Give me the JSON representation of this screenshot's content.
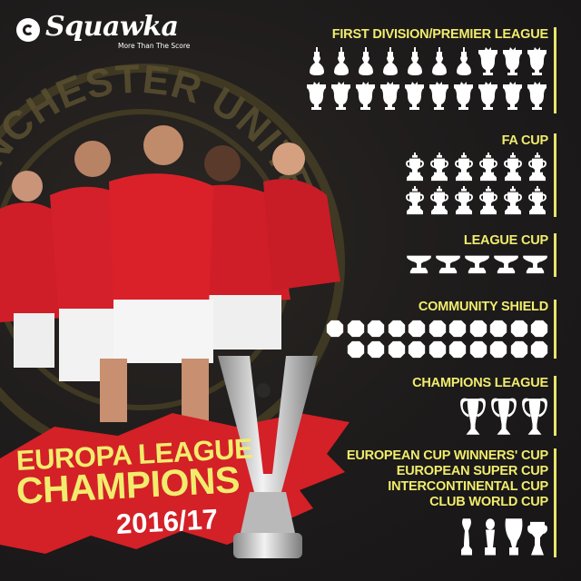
{
  "brand": {
    "name": "Squawka",
    "tagline": "More Than The Score",
    "crest_text": "MANCHESTER UNITED"
  },
  "colors": {
    "accent_yellow": "#f1ec6d",
    "red": "#d42027",
    "background": "#1d1b1b",
    "trophy": "#ffffff"
  },
  "headline": {
    "line1": "EUROPA LEAGUE",
    "line2": "CHAMPIONS",
    "season": "2016/17"
  },
  "sections": [
    {
      "title_lines": [
        "FIRST DIVISION/PREMIER LEAGUE"
      ],
      "groups": [
        {
          "icon": "first-division-trophy-icon",
          "count": 7
        },
        {
          "icon": "premier-league-trophy-icon",
          "count": 13
        }
      ]
    },
    {
      "title_lines": [
        "FA CUP"
      ],
      "groups": [
        {
          "icon": "fa-cup-trophy-icon",
          "count": 12
        }
      ]
    },
    {
      "title_lines": [
        "LEAGUE CUP"
      ],
      "groups": [
        {
          "icon": "league-cup-trophy-icon",
          "count": 5
        }
      ]
    },
    {
      "title_lines": [
        "COMMUNITY SHIELD"
      ],
      "groups": [
        {
          "icon": "community-shield-icon",
          "count": 21
        }
      ]
    },
    {
      "title_lines": [
        "CHAMPIONS LEAGUE"
      ],
      "groups": [
        {
          "icon": "champions-league-trophy-icon",
          "count": 3
        }
      ]
    },
    {
      "title_lines": [
        "EUROPEAN CUP WINNERS' CUP",
        "EUROPEAN SUPER CUP",
        "INTERCONTINENTAL CUP",
        "CLUB WORLD CUP"
      ],
      "groups": [
        {
          "icon": "club-world-cup-trophy-icon",
          "count": 1
        },
        {
          "icon": "intercontinental-cup-trophy-icon",
          "count": 1
        },
        {
          "icon": "super-cup-trophy-icon",
          "count": 1
        },
        {
          "icon": "cup-winners-cup-trophy-icon",
          "count": 1
        }
      ]
    }
  ]
}
